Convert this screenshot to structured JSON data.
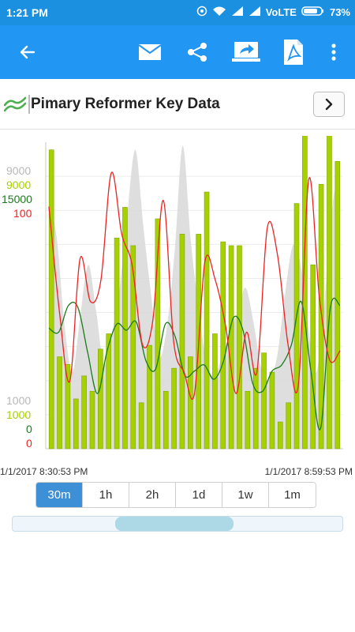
{
  "status_bar": {
    "time": "1:21 PM",
    "network": "VoLTE",
    "battery": "73%"
  },
  "app_bar": {
    "icons": [
      "back-arrow-icon",
      "email-icon",
      "share-icon",
      "forward-screen-icon",
      "pdf-icon",
      "more-vert-icon"
    ]
  },
  "title_bar": {
    "title": "Pimary Reformer Key Data",
    "icon": "trend-lines-icon",
    "next_icon": "chevron-right-icon"
  },
  "chart": {
    "axis_labels_top": [
      {
        "text": "9000",
        "color": "#b8b8b8"
      },
      {
        "text": "9000",
        "color": "#a6d000"
      },
      {
        "text": "15000",
        "color": "#1a7a1a"
      },
      {
        "text": "100",
        "color": "#ee2222"
      }
    ],
    "axis_labels_bottom": [
      {
        "text": "1000",
        "color": "#b8b8b8"
      },
      {
        "text": "1000",
        "color": "#a6d000"
      },
      {
        "text": "0",
        "color": "#1a7a1a"
      },
      {
        "text": "0",
        "color": "#ee2222"
      }
    ],
    "x_start": "1/1/2017 8:30:53 PM",
    "x_end": "1/1/2017 8:59:53 PM"
  },
  "range_buttons": [
    {
      "label": "30m",
      "active": true
    },
    {
      "label": "1h",
      "active": false
    },
    {
      "label": "2h",
      "active": false
    },
    {
      "label": "1d",
      "active": false
    },
    {
      "label": "1w",
      "active": false
    },
    {
      "label": "1m",
      "active": false
    }
  ],
  "navigator": {
    "window_start": 0.31,
    "window_end": 0.67
  },
  "chart_data": {
    "type": "bar",
    "title": "Pimary Reformer Key Data",
    "series_colors": {
      "area": "#d8d8d8",
      "bars": "#a6d000",
      "green_line": "#1a7a1a",
      "red_line": "#ee2222"
    },
    "area": [
      7500,
      6500,
      4200,
      3000,
      4500,
      5800,
      4600,
      3200,
      4000,
      5200,
      7200,
      8800,
      6800,
      5000,
      3400,
      4200,
      6200,
      8900,
      6500,
      4700,
      3300,
      2900,
      3400,
      4000,
      4600,
      5200,
      4300,
      3100,
      2800,
      3400,
      5000,
      6300,
      5800,
      4100,
      3000,
      4800,
      7300,
      8300
    ],
    "bars": [
      8800,
      3400,
      3200,
      2300,
      2900,
      2500,
      3600,
      4000,
      6500,
      7300,
      6300,
      2200,
      3700,
      7000,
      2500,
      3100,
      6600,
      3400,
      6600,
      7700,
      4000,
      6400,
      6300,
      6300,
      2500,
      3100,
      3500,
      3000,
      1700,
      2200,
      7400,
      9200,
      5800,
      7900,
      9300,
      8500
    ],
    "green_line": [
      5900,
      5700,
      7000,
      6900,
      4700,
      2700,
      4800,
      6100,
      5800,
      6200,
      4300,
      3900,
      6100,
      5500,
      3600,
      3800,
      4100,
      3400,
      4300,
      6400,
      5800,
      3200,
      2800,
      3800,
      4100,
      5100,
      7200,
      3800,
      1000,
      6900,
      7000
    ],
    "red_line": [
      79,
      45,
      22,
      62,
      48,
      55,
      90,
      70,
      60,
      34,
      42,
      81,
      35,
      25,
      18,
      61,
      55,
      40,
      18,
      38,
      25,
      72,
      63,
      34,
      21,
      88,
      50,
      29,
      32
    ],
    "ylim_area": [
      1000,
      9000
    ],
    "ylim_bars": [
      1000,
      9000
    ],
    "ylim_green": [
      0,
      15000
    ],
    "ylim_red": [
      0,
      100
    ],
    "x_range": [
      "1/1/2017 8:30:53 PM",
      "1/1/2017 8:59:53 PM"
    ],
    "grid": true
  }
}
